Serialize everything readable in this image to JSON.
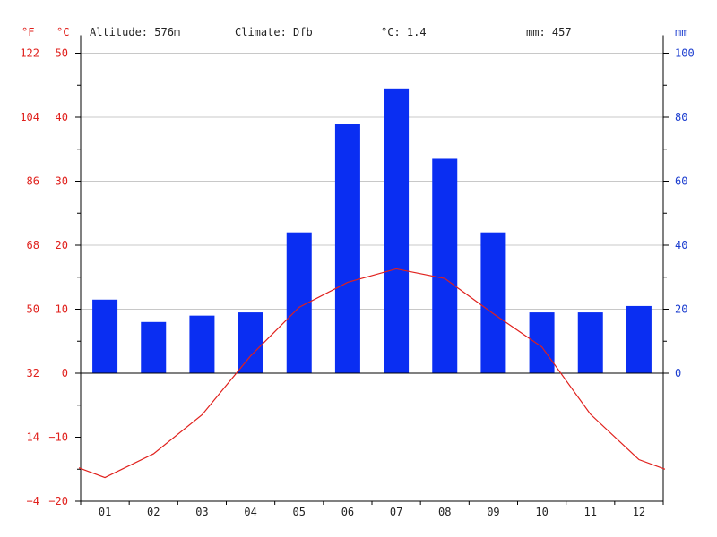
{
  "header": {
    "altitude": "Altitude: 576m",
    "climate": "Climate: Dfb",
    "temp_avg": "°C: 1.4",
    "precip_total": "mm: 457"
  },
  "axes": {
    "fahrenheit_unit": "°F",
    "celsius_unit": "°C",
    "precip_unit": "mm",
    "fahrenheit_ticks": [
      "122",
      "104",
      "86",
      "68",
      "50",
      "32",
      "14",
      "−4"
    ],
    "celsius_ticks": [
      "50",
      "40",
      "30",
      "20",
      "10",
      "0",
      "−10",
      "−20"
    ],
    "precip_ticks": [
      "100",
      "80",
      "60",
      "40",
      "20",
      "0"
    ]
  },
  "chart_data": {
    "type": "bar",
    "categories": [
      "01",
      "02",
      "03",
      "04",
      "05",
      "06",
      "07",
      "08",
      "09",
      "10",
      "11",
      "12"
    ],
    "series": [
      {
        "kind": "bar",
        "axis": "right",
        "unit": "mm",
        "values": [
          23,
          16,
          18,
          19,
          44,
          78,
          89,
          67,
          44,
          19,
          19,
          21
        ]
      },
      {
        "kind": "line",
        "axis": "left",
        "unit": "°C",
        "values": [
          -16.3,
          -12.6,
          -6.5,
          2.7,
          10.3,
          14.2,
          16.3,
          14.8,
          9.3,
          4.1,
          -6.4,
          -13.5
        ]
      }
    ],
    "ylim_celsius": [
      -20,
      50
    ],
    "ylim_precip": [
      0,
      100
    ],
    "grid": true,
    "colors": {
      "bar": "#0a2ef2",
      "line": "#e0201c",
      "red_text": "#e0201c",
      "blue_text": "#1a3ccf"
    }
  }
}
